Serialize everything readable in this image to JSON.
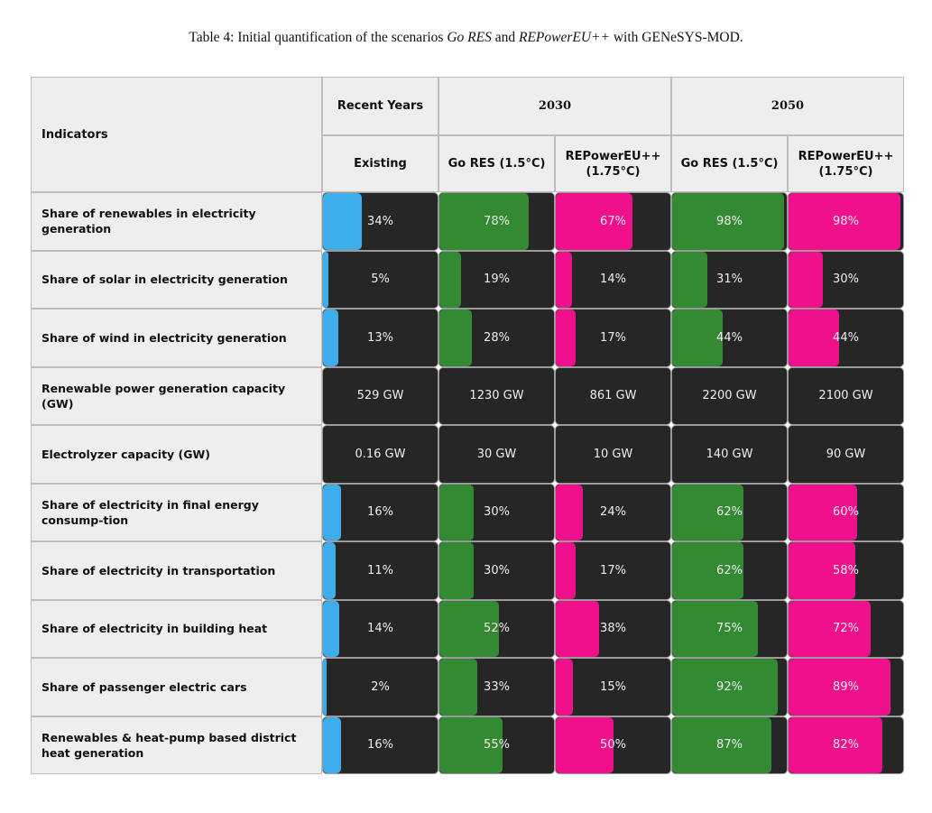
{
  "caption": {
    "prefix": "Table 4: Initial quantification of the scenarios ",
    "s1": "Go RES",
    "mid": " and ",
    "s2": "REPowerEU++",
    "suffix": " with GENeSYS-MOD."
  },
  "header": {
    "indicators": "Indicators",
    "groups": [
      "Recent Years",
      "2030",
      "2050"
    ],
    "columns": [
      "Existing",
      "Go RES (1.5°C)",
      "REPowerEU++ (1.75°C)",
      "Go RES (1.5°C)",
      "REPowerEU++ (1.75°C)"
    ]
  },
  "colors": {
    "existing": "#3daee9",
    "go_res": "#338a33",
    "repowereu": "#f0108c",
    "cell_bg": "#262626",
    "header_bg": "#eeeeee"
  },
  "rows": [
    {
      "label": "Share of renewables in electricity generation",
      "values": [
        "34%",
        "78%",
        "67%",
        "98%",
        "98%"
      ],
      "fill": [
        34,
        78,
        67,
        98,
        98
      ]
    },
    {
      "label": "Share of solar in electricity generation",
      "values": [
        "5%",
        "19%",
        "14%",
        "31%",
        "30%"
      ],
      "fill": [
        5,
        19,
        14,
        31,
        30
      ]
    },
    {
      "label": "Share of wind in electricity generation",
      "values": [
        "13%",
        "28%",
        "17%",
        "44%",
        "44%"
      ],
      "fill": [
        13,
        28,
        17,
        44,
        44
      ]
    },
    {
      "label": "Renewable power generation capacity (GW)",
      "values": [
        "529 GW",
        "1230 GW",
        "861 GW",
        "2200 GW",
        "2100 GW"
      ],
      "fill": null
    },
    {
      "label": "Electrolyzer capacity (GW)",
      "values": [
        "0.16 GW",
        "30 GW",
        "10 GW",
        "140 GW",
        "90 GW"
      ],
      "fill": null
    },
    {
      "label": "Share of electricity in final energy consump-tion",
      "values": [
        "16%",
        "30%",
        "24%",
        "62%",
        "60%"
      ],
      "fill": [
        16,
        30,
        24,
        62,
        60
      ]
    },
    {
      "label": "Share of electricity in transportation",
      "values": [
        "11%",
        "30%",
        "17%",
        "62%",
        "58%"
      ],
      "fill": [
        11,
        30,
        17,
        62,
        58
      ]
    },
    {
      "label": "Share of electricity in building heat",
      "values": [
        "14%",
        "52%",
        "38%",
        "75%",
        "72%"
      ],
      "fill": [
        14,
        52,
        38,
        75,
        72
      ]
    },
    {
      "label": "Share of passenger electric cars",
      "values": [
        "2%",
        "33%",
        "15%",
        "92%",
        "89%"
      ],
      "fill": [
        2,
        33,
        15,
        92,
        89
      ]
    },
    {
      "label": "Renewables & heat-pump based district heat generation",
      "values": [
        "16%",
        "55%",
        "50%",
        "87%",
        "82%"
      ],
      "fill": [
        16,
        55,
        50,
        87,
        82
      ]
    }
  ]
}
